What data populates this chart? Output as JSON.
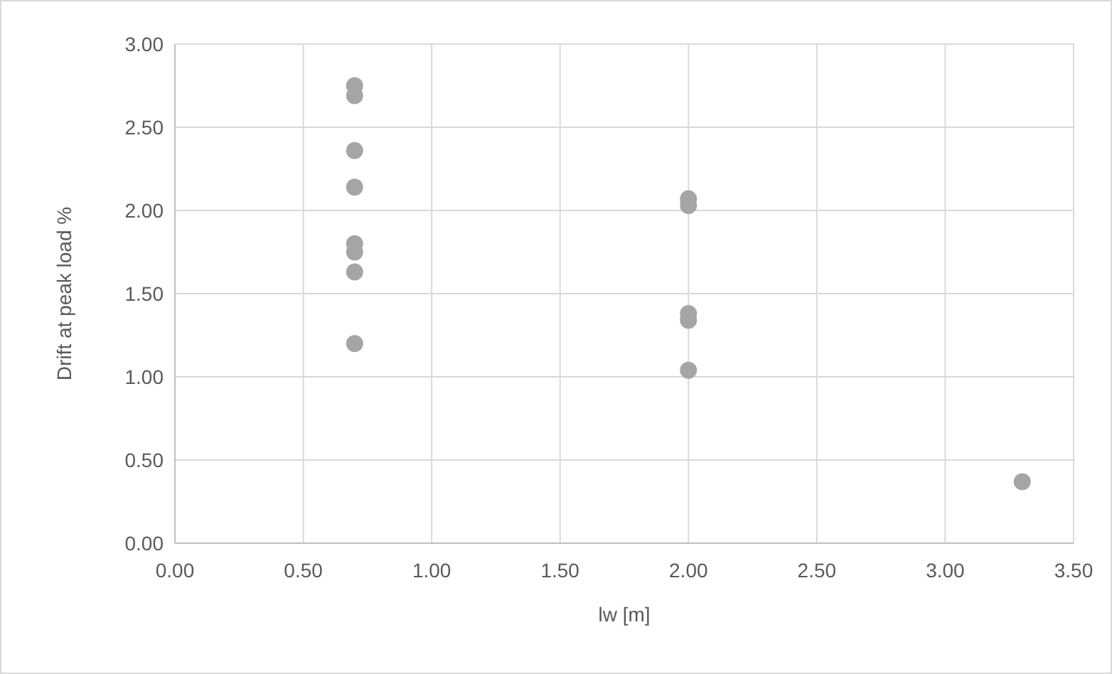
{
  "chart_data": {
    "type": "scatter",
    "xlabel": "lw [m]",
    "ylabel": "Drift at peak load %",
    "x": [
      0.7,
      0.7,
      0.7,
      0.7,
      0.7,
      0.7,
      0.7,
      0.7,
      2.0,
      2.0,
      2.0,
      2.0,
      2.0,
      3.3
    ],
    "series": [
      {
        "color": "#a5a5a5",
        "values": [
          2.75,
          2.69,
          2.36,
          2.14,
          1.8,
          1.75,
          1.63,
          1.2,
          2.07,
          2.03,
          1.38,
          1.34,
          1.04,
          0.37
        ]
      }
    ],
    "xlim": [
      0,
      3.5
    ],
    "xticks": [
      {
        "value": 0,
        "label": "0.00"
      },
      {
        "value": 0.5,
        "label": "0.50"
      },
      {
        "value": 1,
        "label": "1.00"
      },
      {
        "value": 1.5,
        "label": "1.50"
      },
      {
        "value": 2,
        "label": "2.00"
      },
      {
        "value": 2.5,
        "label": "2.50"
      },
      {
        "value": 3,
        "label": "3.00"
      },
      {
        "value": 3.5,
        "label": "3.50"
      }
    ],
    "ylim": [
      0,
      3
    ],
    "yticks": [
      {
        "value": 0,
        "label": "0.00"
      },
      {
        "value": 0.5,
        "label": "0.50"
      },
      {
        "value": 1,
        "label": "1.00"
      },
      {
        "value": 1.5,
        "label": "1.50"
      },
      {
        "value": 2,
        "label": "2.00"
      },
      {
        "value": 2.5,
        "label": "2.50"
      },
      {
        "value": 3,
        "label": "3.00"
      }
    ],
    "grid": true,
    "marker": "circle"
  }
}
